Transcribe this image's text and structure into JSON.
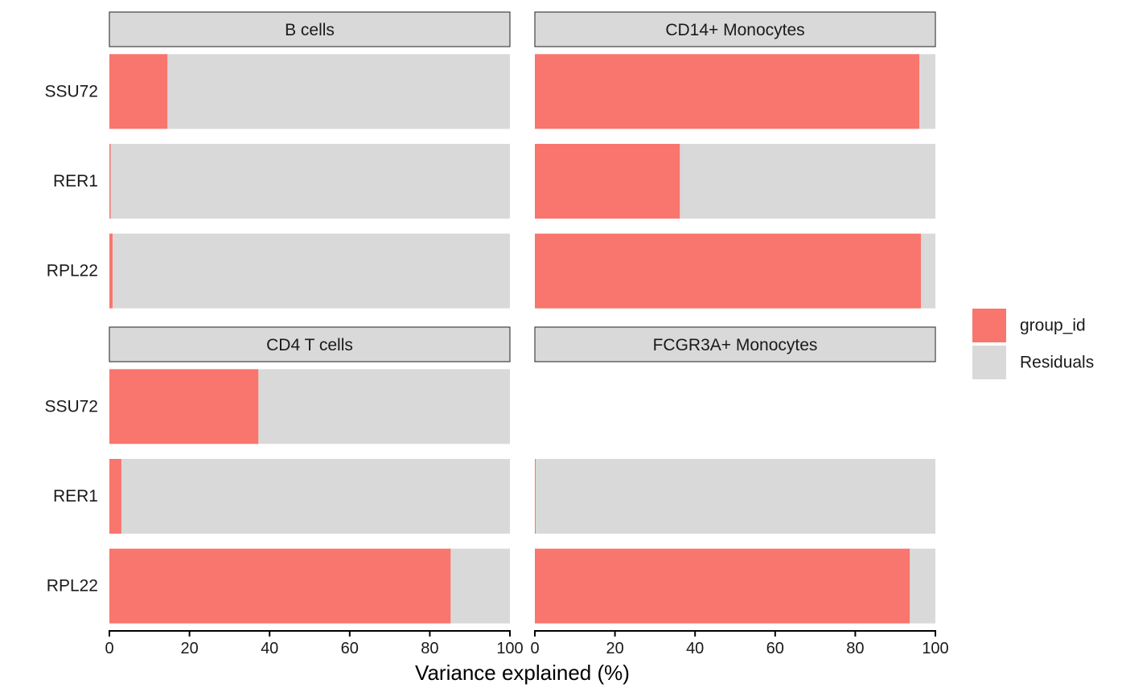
{
  "chart_data": {
    "type": "bar",
    "orientation": "horizontal",
    "stacked": true,
    "xlabel": "Variance explained (%)",
    "xlim": [
      0,
      100
    ],
    "x_ticks": [
      "0",
      "20",
      "40",
      "60",
      "80",
      "100"
    ],
    "categories": [
      "SSU72",
      "RER1",
      "RPL22"
    ],
    "legend": {
      "placement": "right",
      "entries": [
        {
          "name": "group_id",
          "color": "#F8766D"
        },
        {
          "name": "Residuals",
          "color": "#D9D9D9"
        }
      ]
    },
    "panels": [
      {
        "title": "B cells",
        "bars": [
          {
            "gene": "SSU72",
            "group_id": 14.5,
            "Residuals": 85.5
          },
          {
            "gene": "RER1",
            "group_id": 0.3,
            "Residuals": 99.7
          },
          {
            "gene": "RPL22",
            "group_id": 0.8,
            "Residuals": 99.2
          }
        ]
      },
      {
        "title": "CD14+ Monocytes",
        "bars": [
          {
            "gene": "SSU72",
            "group_id": 96.0,
            "Residuals": 4.0
          },
          {
            "gene": "RER1",
            "group_id": 36.2,
            "Residuals": 63.8
          },
          {
            "gene": "RPL22",
            "group_id": 96.4,
            "Residuals": 3.6
          }
        ]
      },
      {
        "title": "CD4 T cells",
        "bars": [
          {
            "gene": "SSU72",
            "group_id": 37.2,
            "Residuals": 62.8
          },
          {
            "gene": "RER1",
            "group_id": 3.0,
            "Residuals": 97.0
          },
          {
            "gene": "RPL22",
            "group_id": 85.2,
            "Residuals": 14.8
          }
        ]
      },
      {
        "title": "FCGR3A+ Monocytes",
        "bars": [
          {
            "gene": "RER1",
            "group_id": 0.2,
            "Residuals": 99.8
          },
          {
            "gene": "RPL22",
            "group_id": 93.6,
            "Residuals": 6.4
          }
        ]
      }
    ]
  }
}
